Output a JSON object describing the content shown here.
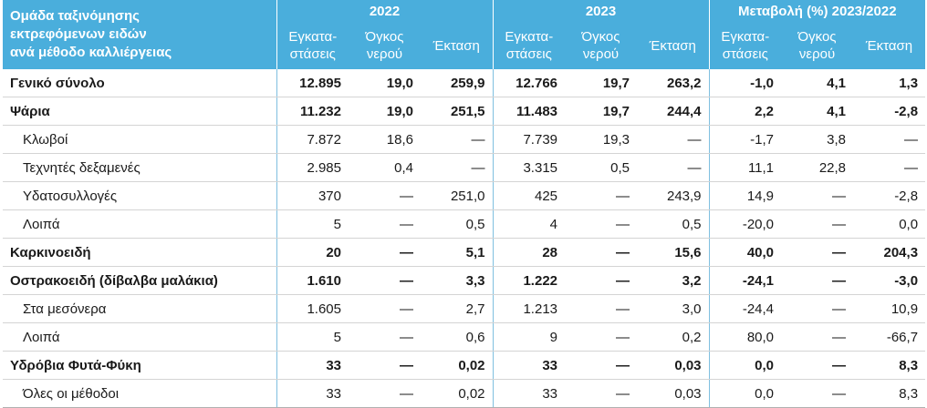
{
  "header": {
    "first_col": [
      "Ομάδα ταξινόμησης",
      "εκτρεφόμενων ειδών",
      "ανά μέθοδο καλλιέργειας"
    ],
    "groups": [
      "2022",
      "2023",
      "Μεταβολή (%) 2023/2022"
    ],
    "subcols": [
      [
        "Εγκατα-",
        "στάσεις"
      ],
      [
        "Όγκος",
        "νερού"
      ],
      [
        "Έκταση"
      ]
    ]
  },
  "rows": [
    {
      "label": "Γενικό σύνολο",
      "bold": true,
      "v": [
        "12.895",
        "19,0",
        "259,9",
        "12.766",
        "19,7",
        "263,2",
        "-1,0",
        "4,1",
        "1,3"
      ]
    },
    {
      "label": "Ψάρια",
      "bold": true,
      "v": [
        "11.232",
        "19,0",
        "251,5",
        "11.483",
        "19,7",
        "244,4",
        "2,2",
        "4,1",
        "-2,8"
      ]
    },
    {
      "label": "Κλωβοί",
      "bold": false,
      "v": [
        "7.872",
        "18,6",
        "—",
        "7.739",
        "19,3",
        "—",
        "-1,7",
        "3,8",
        "—"
      ]
    },
    {
      "label": "Τεχνητές δεξαμενές",
      "bold": false,
      "v": [
        "2.985",
        "0,4",
        "—",
        "3.315",
        "0,5",
        "—",
        "11,1",
        "22,8",
        "—"
      ]
    },
    {
      "label": "Υδατοσυλλογές",
      "bold": false,
      "v": [
        "370",
        "—",
        "251,0",
        "425",
        "—",
        "243,9",
        "14,9",
        "—",
        "-2,8"
      ]
    },
    {
      "label": "Λοιπά",
      "bold": false,
      "v": [
        "5",
        "—",
        "0,5",
        "4",
        "—",
        "0,5",
        "-20,0",
        "—",
        "0,0"
      ]
    },
    {
      "label": "Καρκινοειδή",
      "bold": true,
      "v": [
        "20",
        "—",
        "5,1",
        "28",
        "—",
        "15,6",
        "40,0",
        "—",
        "204,3"
      ]
    },
    {
      "label": "Οστρακοειδή (δίβαλβα μαλάκια)",
      "bold": true,
      "v": [
        "1.610",
        "—",
        "3,3",
        "1.222",
        "—",
        "3,2",
        "-24,1",
        "—",
        "-3,0"
      ]
    },
    {
      "label": "Στα μεσόνερα",
      "bold": false,
      "v": [
        "1.605",
        "—",
        "2,7",
        "1.213",
        "—",
        "3,0",
        "-24,4",
        "—",
        "10,9"
      ]
    },
    {
      "label": "Λοιπά",
      "bold": false,
      "v": [
        "5",
        "—",
        "0,6",
        "9",
        "—",
        "0,2",
        "80,0",
        "—",
        "-66,7"
      ]
    },
    {
      "label": "Υδρόβια Φυτά-Φύκη",
      "bold": true,
      "v": [
        "33",
        "—",
        "0,02",
        "33",
        "—",
        "0,03",
        "0,0",
        "—",
        "8,3"
      ]
    },
    {
      "label": "Όλες οι μέθοδοι",
      "bold": false,
      "v": [
        "33",
        "—",
        "0,02",
        "33",
        "—",
        "0,03",
        "0,0",
        "—",
        "8,3"
      ]
    }
  ]
}
